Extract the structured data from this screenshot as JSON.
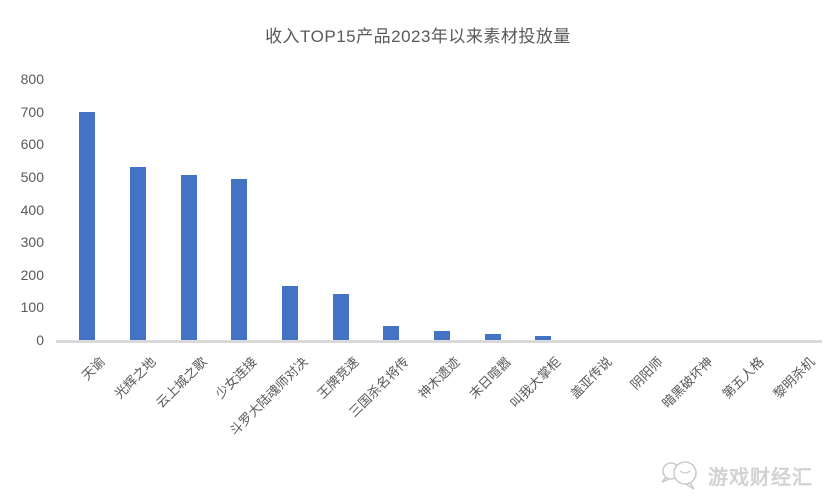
{
  "chart_data": {
    "type": "bar",
    "title": "收入TOP15产品2023年以来素材投放量",
    "categories": [
      "天谕",
      "光辉之地",
      "云上城之歌",
      "少女连接",
      "斗罗大陆魂师对决",
      "王牌竞速",
      "三国杀名将传",
      "神木遗迹",
      "末日喧嚣",
      "叫我大掌柜",
      "盖亚传说",
      "阴阳师",
      "暗黑破坏神",
      "第五人格",
      "黎明杀机"
    ],
    "values": [
      700,
      530,
      505,
      495,
      165,
      140,
      42,
      27,
      19,
      11,
      0,
      0,
      0,
      0,
      0
    ],
    "xlabel": "",
    "ylabel": "",
    "ylim": [
      0,
      800
    ],
    "ytick_step": 100,
    "grid": false,
    "legend_position": "none",
    "bar_color": "#4472C4",
    "axis_text_color": "#595959",
    "baseline_color": "#D9D9D9"
  },
  "watermark": {
    "label": "游戏财经汇",
    "icon": "chat-bubbles-icon",
    "color": "#D2D2D2"
  }
}
